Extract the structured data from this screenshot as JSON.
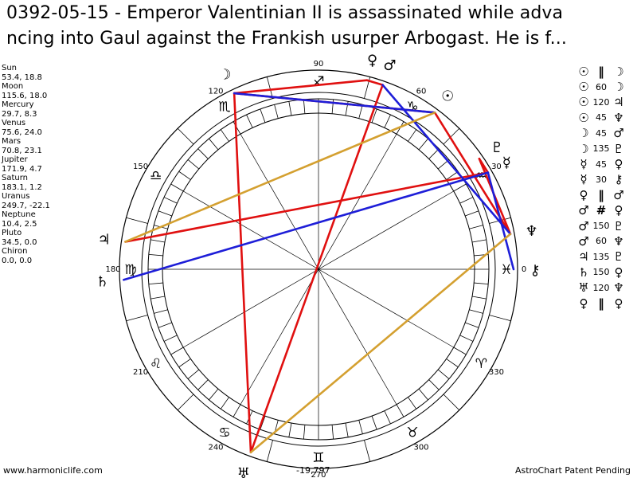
{
  "header": {
    "line1": "0392-05-15 - Emperor Valentinian II is assassinated while adva",
    "line2": "ncing into Gaul against the Frankish usurper Arbogast. He is f..."
  },
  "planets": [
    {
      "name": "Sun",
      "pos": "53.4, 18.8"
    },
    {
      "name": "Moon",
      "pos": "115.6, 18.0"
    },
    {
      "name": "Mercury",
      "pos": "29.7, 8.3"
    },
    {
      "name": "Venus",
      "pos": "75.6, 24.0"
    },
    {
      "name": "Mars",
      "pos": "70.8, 23.1"
    },
    {
      "name": "Jupiter",
      "pos": "171.9, 4.7"
    },
    {
      "name": "Saturn",
      "pos": "183.1, 1.2"
    },
    {
      "name": "Uranus",
      "pos": "249.7, -22.1"
    },
    {
      "name": "Neptune",
      "pos": "10.4, 2.5"
    },
    {
      "name": "Pluto",
      "pos": "34.5, 0.0"
    },
    {
      "name": "Chiron",
      "pos": "0.0, 0.0"
    }
  ],
  "aspects": [
    {
      "p1": "☉",
      "kind": "‖",
      "p2": "☽"
    },
    {
      "p1": "☉",
      "kind": "60",
      "p2": "☽"
    },
    {
      "p1": "☉",
      "kind": "120",
      "p2": "♃"
    },
    {
      "p1": "☉",
      "kind": "45",
      "p2": "♆"
    },
    {
      "p1": "☽",
      "kind": "45",
      "p2": "♂"
    },
    {
      "p1": "☽",
      "kind": "135",
      "p2": "♇"
    },
    {
      "p1": "☿",
      "kind": "45",
      "p2": "♀"
    },
    {
      "p1": "☿",
      "kind": "30",
      "p2": "⚷"
    },
    {
      "p1": "♀",
      "kind": "‖",
      "p2": "♂"
    },
    {
      "p1": "♂",
      "kind": "#",
      "p2": "♀"
    },
    {
      "p1": "♂",
      "kind": "150",
      "p2": "♇"
    },
    {
      "p1": "♂",
      "kind": "60",
      "p2": "♆"
    },
    {
      "p1": "♃",
      "kind": "135",
      "p2": "♇"
    },
    {
      "p1": "♄",
      "kind": "150",
      "p2": "♀"
    },
    {
      "p1": "♅",
      "kind": "120",
      "p2": "♆"
    },
    {
      "p1": "♀",
      "kind": "‖",
      "p2": "♀"
    }
  ],
  "wheel": {
    "degree_labels": [
      "90",
      "60",
      "30",
      "0",
      "330",
      "300",
      "270",
      "240",
      "210",
      "180",
      "150",
      "120"
    ],
    "zodiac": [
      {
        "glyph": "♓",
        "name": "pisces",
        "color": "#000000"
      },
      {
        "glyph": "♒",
        "name": "aquarius",
        "color": "#000000"
      },
      {
        "glyph": "♑",
        "name": "capricorn",
        "color": "#000000"
      },
      {
        "glyph": "♐",
        "name": "sagittarius",
        "color": "#000000"
      },
      {
        "glyph": "♏",
        "name": "scorpio",
        "color": "#000000"
      },
      {
        "glyph": "♎",
        "name": "libra",
        "color": "#000000"
      },
      {
        "glyph": "♍",
        "name": "virgo",
        "color": "#000000"
      },
      {
        "glyph": "♌",
        "name": "leo",
        "color": "#000000"
      },
      {
        "glyph": "♋",
        "name": "cancer",
        "color": "#000000"
      },
      {
        "glyph": "♊",
        "name": "gemini",
        "color": "#000000"
      },
      {
        "glyph": "♉",
        "name": "taurus",
        "color": "#000000"
      },
      {
        "glyph": "♈",
        "name": "aries",
        "color": "#000000"
      }
    ],
    "planet_glyphs": [
      {
        "name": "sun",
        "glyph": "☉",
        "lon": 53.4
      },
      {
        "name": "moon",
        "glyph": "☽",
        "lon": 115.6
      },
      {
        "name": "mercury",
        "glyph": "☿",
        "lon": 29.7
      },
      {
        "name": "venus",
        "glyph": "♀",
        "lon": 75.6
      },
      {
        "name": "mars",
        "glyph": "♂",
        "lon": 70.8
      },
      {
        "name": "jupiter",
        "glyph": "♃",
        "lon": 171.9
      },
      {
        "name": "saturn",
        "glyph": "♄",
        "lon": 183.1
      },
      {
        "name": "uranus",
        "glyph": "♅",
        "lon": 249.7
      },
      {
        "name": "neptune",
        "glyph": "♆",
        "lon": 10.4
      },
      {
        "name": "pluto",
        "glyph": "♇",
        "lon": 34.5
      },
      {
        "name": "chiron",
        "glyph": "⚷",
        "lon": 0.0
      }
    ],
    "aspect_lines": [
      {
        "from": 115.6,
        "to": 53.4,
        "color": "#e01010"
      },
      {
        "from": 115.6,
        "to": 75.6,
        "color": "#e01010"
      },
      {
        "from": 75.6,
        "to": 70.8,
        "color": "#e01010"
      },
      {
        "from": 70.8,
        "to": 249.7,
        "color": "#e01010"
      },
      {
        "from": 249.7,
        "to": 115.6,
        "color": "#e01010"
      },
      {
        "from": 171.9,
        "to": 29.7,
        "color": "#e01010"
      },
      {
        "from": 29.7,
        "to": 34.5,
        "color": "#e01010"
      },
      {
        "from": 53.4,
        "to": 10.4,
        "color": "#e01010"
      },
      {
        "from": 10.4,
        "to": 34.5,
        "color": "#e01010"
      },
      {
        "from": 115.6,
        "to": 53.4,
        "color": "#1e1ed8"
      },
      {
        "from": 183.1,
        "to": 29.7,
        "color": "#1e1ed8"
      },
      {
        "from": 29.7,
        "to": 0.0,
        "color": "#1e1ed8"
      },
      {
        "from": 70.8,
        "to": 10.4,
        "color": "#1e1ed8"
      },
      {
        "from": 171.9,
        "to": 53.4,
        "color": "#d4a030"
      },
      {
        "from": 249.7,
        "to": 10.4,
        "color": "#d4a030"
      }
    ],
    "footer": {
      "left": "www.harmoniclife.com",
      "center": "-19,797",
      "right": "AstroChart Patent Pending"
    }
  }
}
